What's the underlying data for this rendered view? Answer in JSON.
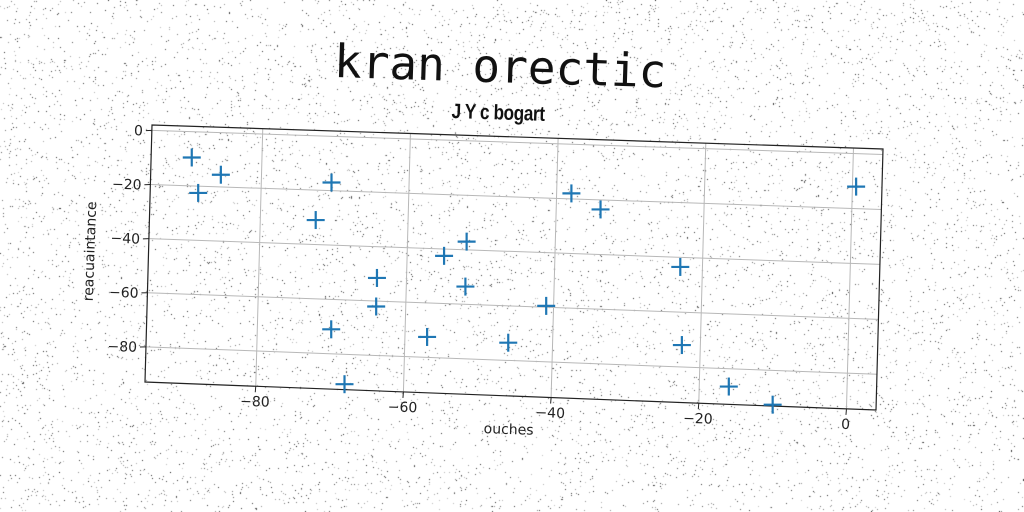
{
  "chart_data": {
    "type": "scatter",
    "title": "kran orectic",
    "subtitle": "J Y c bogart",
    "xlabel": "ouches",
    "ylabel": "reacuaintance",
    "xlim": [
      -95,
      4
    ],
    "ylim": [
      -93,
      2
    ],
    "xticks": [
      -80,
      -60,
      -40,
      -20,
      0
    ],
    "yticks": [
      0,
      -20,
      -40,
      -60,
      -80
    ],
    "xtick_labels": [
      "−80",
      "−60",
      "−40",
      "−20",
      "0"
    ],
    "ytick_labels": [
      "0",
      "−20",
      "−40",
      "−60",
      "−80"
    ],
    "grid": true,
    "marker": "plus",
    "color": "#1f77b4",
    "points": [
      {
        "x": -89.5,
        "y": -9.5
      },
      {
        "x": -88.5,
        "y": -22.5
      },
      {
        "x": -85.5,
        "y": -15.5
      },
      {
        "x": -72.5,
        "y": -31.0
      },
      {
        "x": -70.5,
        "y": -17.0
      },
      {
        "x": -70.0,
        "y": -71.0
      },
      {
        "x": -68.0,
        "y": -91.0
      },
      {
        "x": -64.0,
        "y": -51.5
      },
      {
        "x": -64.0,
        "y": -62.0
      },
      {
        "x": -57.0,
        "y": -72.5
      },
      {
        "x": -55.0,
        "y": -42.5
      },
      {
        "x": -52.0,
        "y": -37.0
      },
      {
        "x": -52.0,
        "y": -53.5
      },
      {
        "x": -46.0,
        "y": -73.5
      },
      {
        "x": -41.0,
        "y": -59.5
      },
      {
        "x": -38.0,
        "y": -18.0
      },
      {
        "x": -34.0,
        "y": -23.5
      },
      {
        "x": -23.0,
        "y": -43.5
      },
      {
        "x": -22.5,
        "y": -72.0
      },
      {
        "x": -16.0,
        "y": -86.5
      },
      {
        "x": -10.0,
        "y": -92.5
      },
      {
        "x": 0.5,
        "y": -12.0
      }
    ]
  }
}
